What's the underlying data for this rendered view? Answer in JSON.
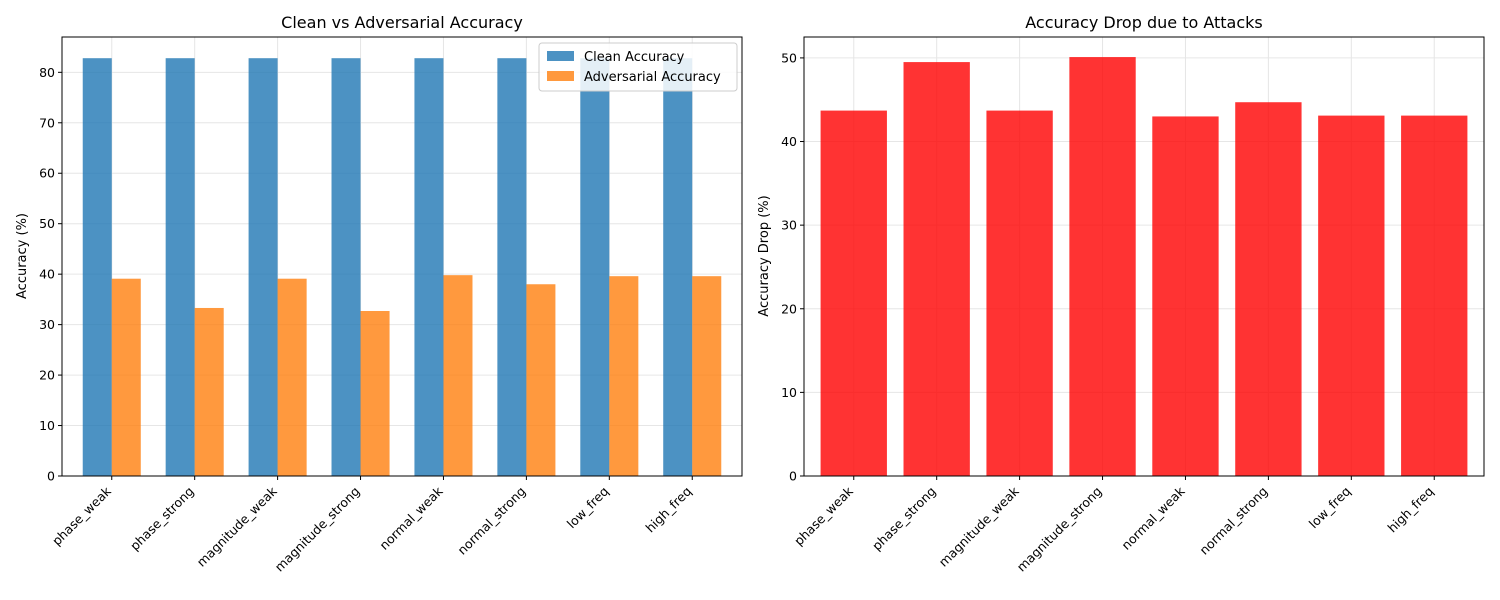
{
  "chart_data": [
    {
      "type": "bar",
      "title": "Clean vs Adversarial Accuracy",
      "xlabel": "",
      "ylabel": "Accuracy (%)",
      "ylim": [
        0,
        87
      ],
      "yticks": [
        0,
        10,
        20,
        30,
        40,
        50,
        60,
        70,
        80
      ],
      "grid": true,
      "legend": "top-right",
      "categories": [
        "phase_weak",
        "phase_strong",
        "magnitude_weak",
        "magnitude_strong",
        "normal_weak",
        "normal_strong",
        "low_freq",
        "high_freq"
      ],
      "series": [
        {
          "name": "Clean Accuracy",
          "color": "#1f77b4",
          "values": [
            82.8,
            82.8,
            82.8,
            82.8,
            82.8,
            82.8,
            82.8,
            82.8
          ]
        },
        {
          "name": "Adversarial Accuracy",
          "color": "#ff7f0e",
          "values": [
            39.1,
            33.3,
            39.1,
            32.7,
            39.8,
            38.0,
            39.6,
            39.6
          ]
        }
      ]
    },
    {
      "type": "bar",
      "title": "Accuracy Drop due to Attacks",
      "xlabel": "",
      "ylabel": "Accuracy Drop (%)",
      "ylim": [
        0,
        52.5
      ],
      "yticks": [
        0,
        10,
        20,
        30,
        40,
        50
      ],
      "grid": true,
      "categories": [
        "phase_weak",
        "phase_strong",
        "magnitude_weak",
        "magnitude_strong",
        "normal_weak",
        "normal_strong",
        "low_freq",
        "high_freq"
      ],
      "series": [
        {
          "color": "#ff0000",
          "values": [
            43.7,
            49.5,
            43.7,
            50.1,
            43.0,
            44.7,
            43.1,
            43.1
          ]
        }
      ]
    }
  ]
}
